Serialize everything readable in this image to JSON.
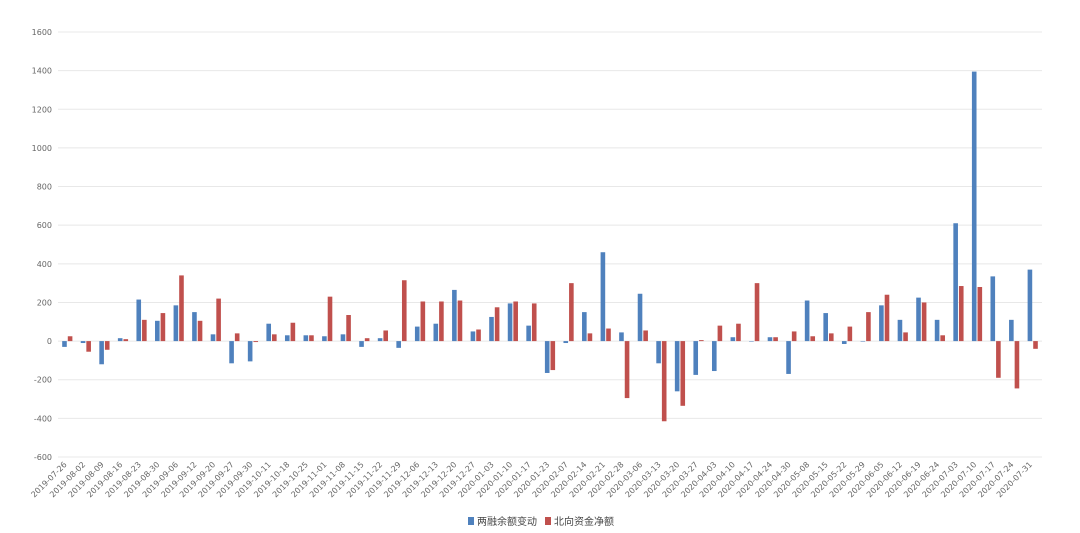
{
  "chart_data": {
    "type": "bar",
    "categories": [
      "2019-07-26",
      "2019-08-02",
      "2019-08-09",
      "2019-08-16",
      "2019-08-23",
      "2019-08-30",
      "2019-09-06",
      "2019-09-12",
      "2019-09-20",
      "2019-09-27",
      "2019-09-30",
      "2019-10-11",
      "2019-10-18",
      "2019-10-25",
      "2019-11-01",
      "2019-11-08",
      "2019-11-15",
      "2019-11-22",
      "2019-11-29",
      "2019-12-06",
      "2019-12-13",
      "2019-12-20",
      "2019-12-27",
      "2020-01-03",
      "2020-01-10",
      "2020-01-17",
      "2020-01-23",
      "2020-02-07",
      "2020-02-14",
      "2020-02-21",
      "2020-02-28",
      "2020-03-06",
      "2020-03-13",
      "2020-03-20",
      "2020-03-27",
      "2020-04-03",
      "2020-04-10",
      "2020-04-17",
      "2020-04-24",
      "2020-04-30",
      "2020-05-08",
      "2020-05-15",
      "2020-05-22",
      "2020-05-29",
      "2020-06-05",
      "2020-06-12",
      "2020-06-19",
      "2020-06-24",
      "2020-07-03",
      "2020-07-10",
      "2020-07-17",
      "2020-07-24",
      "2020-07-31"
    ],
    "series": [
      {
        "name": "两融余额变动",
        "color": "#4f81bd",
        "values": [
          -30,
          -10,
          -120,
          15,
          215,
          105,
          185,
          150,
          35,
          -115,
          -105,
          90,
          30,
          30,
          25,
          35,
          -30,
          15,
          -35,
          75,
          90,
          265,
          50,
          125,
          195,
          80,
          -165,
          -10,
          150,
          460,
          45,
          245,
          -115,
          -260,
          -175,
          -155,
          20,
          0,
          20,
          -170,
          210,
          145,
          -15,
          0,
          185,
          110,
          225,
          110,
          610,
          1395,
          335,
          110,
          370
        ]
      },
      {
        "name": "北向资金净额",
        "color": "#c0504d",
        "values": [
          25,
          -55,
          -45,
          10,
          110,
          145,
          340,
          105,
          220,
          40,
          -5,
          35,
          95,
          30,
          230,
          135,
          15,
          55,
          315,
          205,
          205,
          210,
          60,
          175,
          205,
          195,
          -150,
          300,
          40,
          65,
          -295,
          55,
          -415,
          -335,
          5,
          80,
          90,
          300,
          20,
          50,
          25,
          40,
          75,
          150,
          240,
          45,
          200,
          30,
          285,
          280,
          -190,
          -245,
          -40
        ]
      }
    ],
    "ylim": [
      -600,
      1600
    ],
    "yticks": [
      -600,
      -400,
      -200,
      0,
      200,
      400,
      600,
      800,
      1000,
      1200,
      1400,
      1600
    ],
    "grid": true,
    "legend": "bottom"
  }
}
